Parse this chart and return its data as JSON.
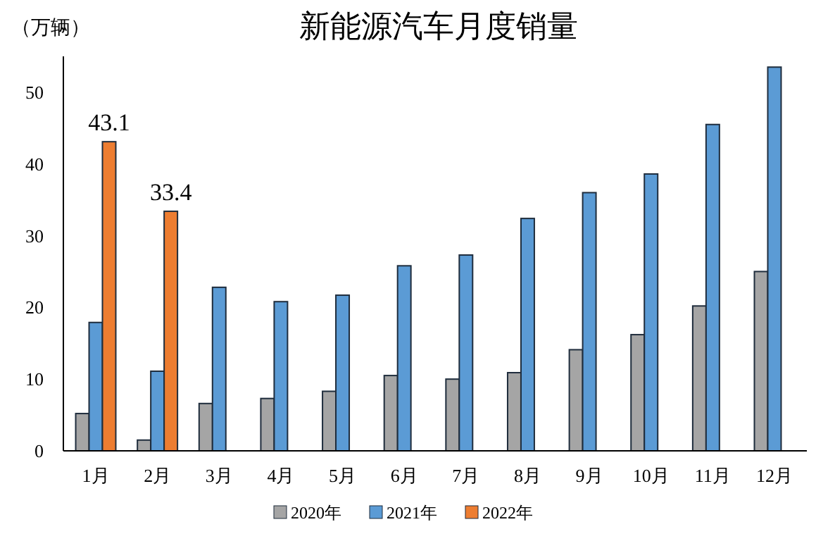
{
  "chart_data": {
    "type": "bar",
    "title": "新能源汽车月度销量",
    "ylabel": "（万辆）",
    "categories": [
      "1月",
      "2月",
      "3月",
      "4月",
      "5月",
      "6月",
      "7月",
      "8月",
      "9月",
      "10月",
      "11月",
      "12月"
    ],
    "series": [
      {
        "name": "2020年",
        "color": "#a5a5a5",
        "values": [
          5.2,
          1.5,
          6.6,
          7.3,
          8.3,
          10.5,
          10.0,
          10.9,
          14.1,
          16.2,
          20.2,
          25.0
        ]
      },
      {
        "name": "2021年",
        "color": "#5b9bd5",
        "values": [
          17.9,
          11.1,
          22.8,
          20.8,
          21.7,
          25.8,
          27.3,
          32.4,
          36.0,
          38.6,
          45.5,
          53.5
        ]
      },
      {
        "name": "2022年",
        "color": "#ed7d31",
        "values": [
          43.1,
          33.4,
          null,
          null,
          null,
          null,
          null,
          null,
          null,
          null,
          null,
          null
        ],
        "value_labels": [
          "43.1",
          "33.4",
          null,
          null,
          null,
          null,
          null,
          null,
          null,
          null,
          null,
          null
        ]
      }
    ],
    "ylim": [
      0,
      55
    ],
    "yticks": [
      0,
      10,
      20,
      30,
      40,
      50
    ],
    "grid": false,
    "legend": "bottom"
  }
}
